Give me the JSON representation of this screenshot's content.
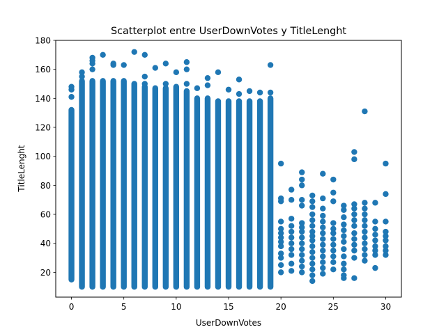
{
  "chart_data": {
    "type": "scatter",
    "title": "Scatterplot entre UserDownVotes y TitleLenght",
    "xlabel": "UserDownVotes",
    "ylabel": "TitleLenght",
    "xlim": [
      -1.5,
      31.5
    ],
    "ylim": [
      2.9,
      180
    ],
    "xticks": [
      0,
      5,
      10,
      15,
      20,
      25,
      30
    ],
    "yticks": [
      20,
      40,
      60,
      80,
      100,
      120,
      140,
      160,
      180
    ],
    "marker_color": "#1f77b4",
    "grid": false,
    "series": [
      {
        "columns": [
          {
            "x": 0,
            "min": 15,
            "max": 132,
            "outliers": [
              141,
              146,
              148
            ]
          },
          {
            "x": 1,
            "min": 10,
            "max": 152,
            "outliers": [
              155,
              158
            ]
          },
          {
            "x": 2,
            "min": 10,
            "max": 152,
            "outliers": [
              160,
              164,
              166,
              168
            ]
          },
          {
            "x": 3,
            "min": 10,
            "max": 152,
            "outliers": [
              170
            ]
          },
          {
            "x": 4,
            "min": 10,
            "max": 152,
            "outliers": [
              163,
              164
            ]
          },
          {
            "x": 5,
            "min": 10,
            "max": 152,
            "outliers": [
              163
            ]
          },
          {
            "x": 6,
            "min": 10,
            "max": 150,
            "outliers": [
              172
            ]
          },
          {
            "x": 7,
            "min": 10,
            "max": 148,
            "outliers": [
              150,
              155,
              170
            ]
          },
          {
            "x": 8,
            "min": 10,
            "max": 147,
            "outliers": [
              161
            ]
          },
          {
            "x": 9,
            "min": 10,
            "max": 147,
            "outliers": [
              150,
              164
            ]
          },
          {
            "x": 10,
            "min": 10,
            "max": 148,
            "outliers": [
              158
            ]
          },
          {
            "x": 11,
            "min": 10,
            "max": 145,
            "outliers": [
              150,
              160,
              165
            ]
          },
          {
            "x": 12,
            "min": 10,
            "max": 140,
            "outliers": [
              147
            ]
          },
          {
            "x": 13,
            "min": 10,
            "max": 140,
            "outliers": [
              149,
              154
            ]
          },
          {
            "x": 14,
            "min": 10,
            "max": 138,
            "outliers": [
              158
            ]
          },
          {
            "x": 15,
            "min": 10,
            "max": 138,
            "outliers": [
              146
            ]
          },
          {
            "x": 16,
            "min": 10,
            "max": 138,
            "outliers": [
              143,
              153
            ]
          },
          {
            "x": 17,
            "min": 10,
            "max": 138,
            "outliers": [
              145
            ]
          },
          {
            "x": 18,
            "min": 10,
            "max": 138,
            "outliers": [
              144
            ]
          },
          {
            "x": 19,
            "min": 10,
            "max": 140,
            "outliers": [
              144,
              163
            ]
          }
        ],
        "sparse_points": [
          [
            20,
            20
          ],
          [
            20,
            25
          ],
          [
            20,
            30
          ],
          [
            20,
            33
          ],
          [
            20,
            38
          ],
          [
            20,
            41
          ],
          [
            20,
            44
          ],
          [
            20,
            47
          ],
          [
            20,
            50
          ],
          [
            20,
            55
          ],
          [
            20,
            69
          ],
          [
            20,
            71
          ],
          [
            20,
            95
          ],
          [
            21,
            21
          ],
          [
            21,
            26
          ],
          [
            21,
            32
          ],
          [
            21,
            36
          ],
          [
            21,
            40
          ],
          [
            21,
            44
          ],
          [
            21,
            48
          ],
          [
            21,
            52
          ],
          [
            21,
            57
          ],
          [
            21,
            70
          ],
          [
            21,
            77
          ],
          [
            22,
            20
          ],
          [
            22,
            24
          ],
          [
            22,
            28
          ],
          [
            22,
            32
          ],
          [
            22,
            36
          ],
          [
            22,
            40
          ],
          [
            22,
            44
          ],
          [
            22,
            48
          ],
          [
            22,
            51
          ],
          [
            22,
            54
          ],
          [
            22,
            66
          ],
          [
            22,
            70
          ],
          [
            22,
            80
          ],
          [
            22,
            84
          ],
          [
            22,
            89
          ],
          [
            23,
            14
          ],
          [
            23,
            18
          ],
          [
            23,
            22
          ],
          [
            23,
            26
          ],
          [
            23,
            30
          ],
          [
            23,
            34
          ],
          [
            23,
            38
          ],
          [
            23,
            42
          ],
          [
            23,
            45
          ],
          [
            23,
            48
          ],
          [
            23,
            52
          ],
          [
            23,
            56
          ],
          [
            23,
            60
          ],
          [
            23,
            65
          ],
          [
            23,
            69
          ],
          [
            23,
            73
          ],
          [
            24,
            19
          ],
          [
            24,
            23
          ],
          [
            24,
            27
          ],
          [
            24,
            31
          ],
          [
            24,
            35
          ],
          [
            24,
            39
          ],
          [
            24,
            43
          ],
          [
            24,
            47
          ],
          [
            24,
            51
          ],
          [
            24,
            55
          ],
          [
            24,
            59
          ],
          [
            24,
            64
          ],
          [
            24,
            71
          ],
          [
            24,
            88
          ],
          [
            25,
            22
          ],
          [
            25,
            27
          ],
          [
            25,
            31
          ],
          [
            25,
            35
          ],
          [
            25,
            39
          ],
          [
            25,
            43
          ],
          [
            25,
            47
          ],
          [
            25,
            50
          ],
          [
            25,
            54
          ],
          [
            25,
            69
          ],
          [
            25,
            75
          ],
          [
            25,
            84
          ],
          [
            26,
            16
          ],
          [
            26,
            18
          ],
          [
            26,
            22
          ],
          [
            26,
            26
          ],
          [
            26,
            31
          ],
          [
            26,
            36
          ],
          [
            26,
            41
          ],
          [
            26,
            45
          ],
          [
            26,
            49
          ],
          [
            26,
            53
          ],
          [
            26,
            58
          ],
          [
            26,
            63
          ],
          [
            26,
            66
          ],
          [
            27,
            16
          ],
          [
            27,
            30
          ],
          [
            27,
            35
          ],
          [
            27,
            39
          ],
          [
            27,
            43
          ],
          [
            27,
            47
          ],
          [
            27,
            52
          ],
          [
            27,
            56
          ],
          [
            27,
            60
          ],
          [
            27,
            64
          ],
          [
            27,
            67
          ],
          [
            27,
            98
          ],
          [
            27,
            103
          ],
          [
            28,
            28
          ],
          [
            28,
            32
          ],
          [
            28,
            36
          ],
          [
            28,
            40
          ],
          [
            28,
            44
          ],
          [
            28,
            48
          ],
          [
            28,
            52
          ],
          [
            28,
            56
          ],
          [
            28,
            60
          ],
          [
            28,
            64
          ],
          [
            28,
            68
          ],
          [
            28,
            131
          ],
          [
            29,
            23
          ],
          [
            29,
            32
          ],
          [
            29,
            35
          ],
          [
            29,
            38
          ],
          [
            29,
            42
          ],
          [
            29,
            46
          ],
          [
            29,
            50
          ],
          [
            29,
            55
          ],
          [
            29,
            68
          ],
          [
            30,
            32
          ],
          [
            30,
            35
          ],
          [
            30,
            38
          ],
          [
            30,
            42
          ],
          [
            30,
            45
          ],
          [
            30,
            48
          ],
          [
            30,
            55
          ],
          [
            30,
            74
          ],
          [
            30,
            95
          ]
        ]
      }
    ]
  }
}
